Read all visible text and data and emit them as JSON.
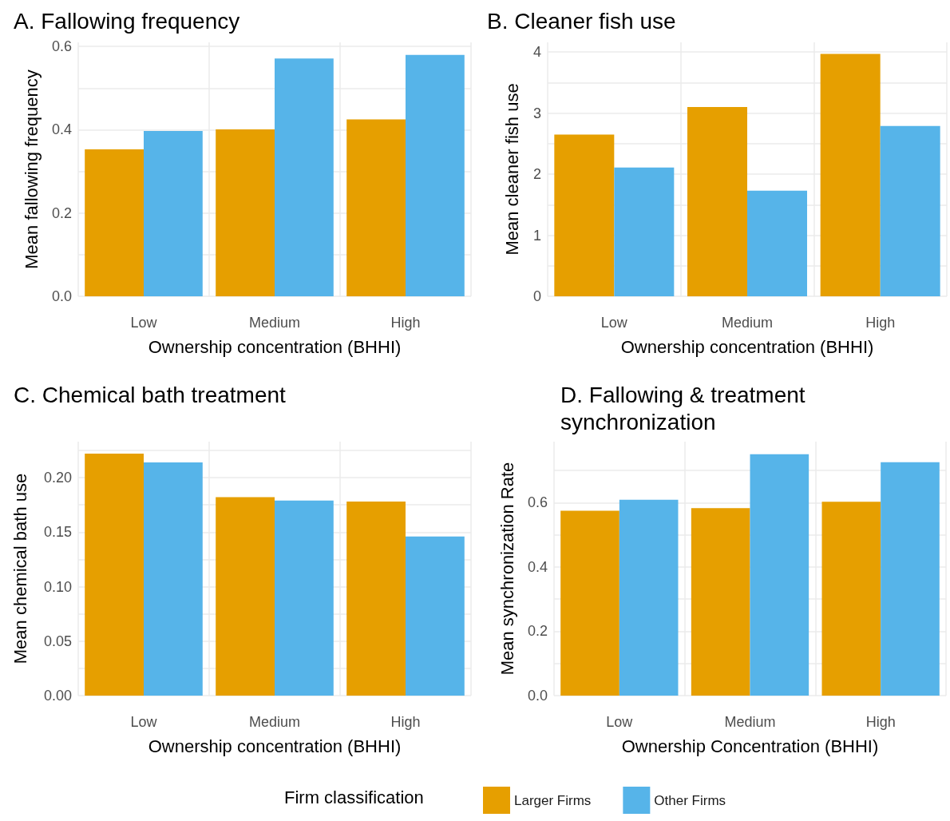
{
  "chart_data": [
    {
      "type": "bar",
      "title": "A. Fallowing frequency",
      "xlabel": "Ownership concentration (BHHI)",
      "ylabel": "Mean fallowing frequency",
      "categories": [
        "Low",
        "Medium",
        "High"
      ],
      "series": [
        {
          "color": "#e69f00",
          "values": [
            0.353,
            0.401,
            0.425
          ]
        },
        {
          "color": "#56b4e9",
          "values": [
            0.397,
            0.571,
            0.58
          ]
        }
      ],
      "ylim": [
        0,
        0.61
      ],
      "yticks": [
        {
          "value": 0,
          "label": "0.0"
        },
        {
          "value": 0.1,
          "label": null
        },
        0.2,
        {
          "value": 0.3,
          "label": null
        },
        0.4,
        {
          "value": 0.5,
          "label": null
        },
        0.6
      ],
      "grid": true
    },
    {
      "type": "bar",
      "title": "B. Cleaner fish use",
      "xlabel": "Ownership concentration (BHHI)",
      "ylabel": "Mean cleaner fish use",
      "categories": [
        "Low",
        "Medium",
        "High"
      ],
      "series": [
        {
          "color": "#e69f00",
          "values": [
            2.65,
            3.1,
            3.97
          ]
        },
        {
          "color": "#56b4e9",
          "values": [
            2.11,
            1.73,
            2.79
          ]
        }
      ],
      "ylim": [
        0,
        4.16
      ],
      "yticks": [
        0,
        {
          "value": 0.5,
          "label": null
        },
        1,
        {
          "value": 1.5,
          "label": null
        },
        2,
        {
          "value": 2.5,
          "label": null
        },
        3,
        {
          "value": 3.5,
          "label": null
        },
        4
      ],
      "grid": true
    },
    {
      "type": "bar",
      "title": "C. Chemical bath treatment",
      "xlabel": "Ownership concentration (BHHI)",
      "ylabel": "Mean chemical bath use",
      "categories": [
        "Low",
        "Medium",
        "High"
      ],
      "series": [
        {
          "color": "#e69f00",
          "values": [
            0.222,
            0.182,
            0.178
          ]
        },
        {
          "color": "#56b4e9",
          "values": [
            0.214,
            0.179,
            0.146
          ]
        }
      ],
      "ylim": [
        0,
        0.233
      ],
      "yticks": [
        {
          "value": 0,
          "label": "0.00"
        },
        {
          "value": 0.025,
          "label": null
        },
        {
          "value": 0.05,
          "label": "0.05"
        },
        {
          "value": 0.075,
          "label": null
        },
        {
          "value": 0.1,
          "label": "0.10"
        },
        {
          "value": 0.125,
          "label": null
        },
        {
          "value": 0.15,
          "label": "0.15"
        },
        {
          "value": 0.175,
          "label": null
        },
        {
          "value": 0.2,
          "label": "0.20"
        },
        {
          "value": 0.225,
          "label": null
        }
      ],
      "grid": true
    },
    {
      "type": "bar",
      "title": "D. Fallowing & treatment synchronization",
      "xlabel": "Ownership Concentration (BHHI)",
      "ylabel": "Mean synchronization Rate",
      "categories": [
        "Low",
        "Medium",
        "High"
      ],
      "series": [
        {
          "name": "Larger Firms",
          "color": "#e69f00",
          "values": [
            0.575,
            0.583,
            0.603
          ]
        },
        {
          "name": "Other Firms",
          "color": "#56b4e9",
          "values": [
            0.609,
            0.751,
            0.726
          ]
        }
      ],
      "ylim": [
        0,
        0.79
      ],
      "yticks": [
        {
          "value": 0,
          "label": "0.0"
        },
        {
          "value": 0.1,
          "label": null
        },
        0.2,
        {
          "value": 0.3,
          "label": null
        },
        0.4,
        {
          "value": 0.5,
          "label": null
        },
        0.6,
        {
          "value": 0.7,
          "label": null
        }
      ],
      "grid": true,
      "legend": "bottom",
      "legend_title": "Firm classification"
    }
  ]
}
